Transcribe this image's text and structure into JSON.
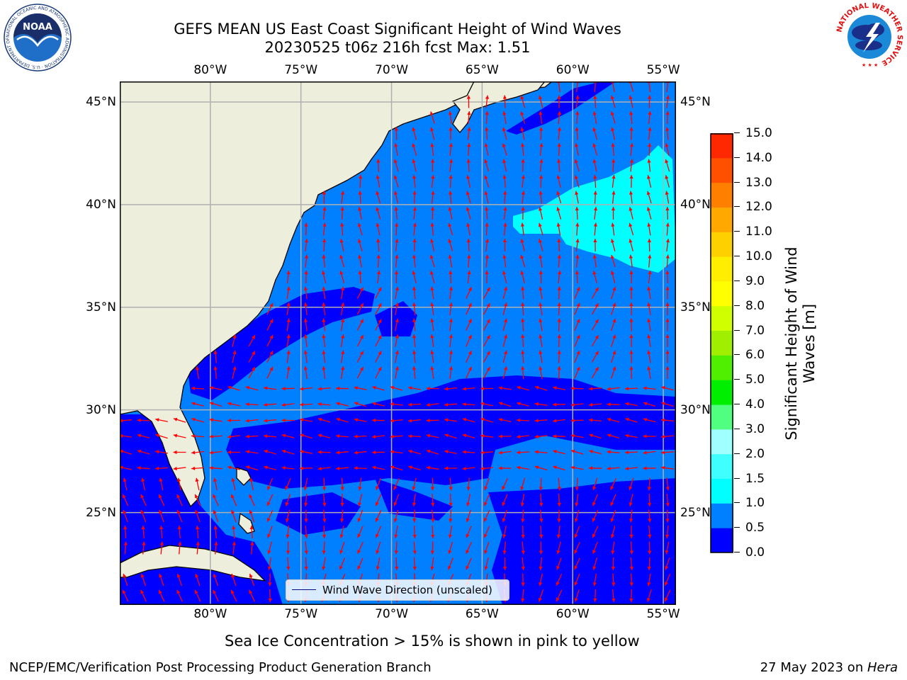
{
  "title": {
    "line1": "GEFS MEAN US East Coast Significant Height of Wind Waves",
    "line2": "20230525 t06z 216h fcst   Max: 1.51"
  },
  "logos": {
    "noaa_text": "NOAA",
    "noaa_ring": "NATIONAL OCEANIC AND ATMOSPHERIC ADMINISTRATION · U.S. DEPARTMENT OF COMMERCE ·",
    "nws_ring": "NATIONAL WEATHER SERVICE"
  },
  "map": {
    "lon_ticks": [
      "80°W",
      "75°W",
      "70°W",
      "65°W",
      "60°W",
      "55°W"
    ],
    "lat_ticks": [
      "45°N",
      "40°N",
      "35°N",
      "30°N",
      "25°N"
    ],
    "lon_values": [
      -80,
      -75,
      -70,
      -65,
      -60,
      -55
    ],
    "lat_values": [
      45,
      40,
      35,
      30,
      25
    ],
    "extent": {
      "lon": [
        -85,
        -54.3
      ],
      "lat": [
        20.5,
        46
      ]
    },
    "gridlines": true,
    "colors": {
      "land": "#eeeedc",
      "arrow": "#ff0000",
      "grid": "#b0b0b0",
      "coast": "#000000",
      "class_0_0p5": "#0000ff",
      "class_0p5_1": "#0080ff",
      "class_1_1p5": "#00ffff"
    },
    "legend_label": "Wind Wave Direction (unscaled)"
  },
  "colorbar": {
    "title_line1": "Significant Height of Wind",
    "title_line2": "Waves [m]",
    "labels": [
      "15.0",
      "14.0",
      "13.0",
      "12.0",
      "11.0",
      "10.0",
      "9.0",
      "8.0",
      "7.0",
      "6.0",
      "5.0",
      "4.0",
      "3.0",
      "2.0",
      "1.5",
      "1.0",
      "0.5",
      "0.0"
    ],
    "levels": [
      0,
      0.5,
      1.0,
      1.5,
      2.0,
      3.0,
      4.0,
      5.0,
      6.0,
      7.0,
      8.0,
      9.0,
      10.0,
      11.0,
      12.0,
      13.0,
      14.0,
      15.0
    ],
    "colors": [
      "#0000ff",
      "#0080ff",
      "#00ffff",
      "#40ffff",
      "#a0ffff",
      "#50ff80",
      "#00ee00",
      "#50ee00",
      "#a0ee00",
      "#d0ff00",
      "#ffff00",
      "#ffee00",
      "#ffd000",
      "#ffa800",
      "#ff8000",
      "#ff5000",
      "#ff2800",
      "#ff0000"
    ]
  },
  "footer": {
    "note": "Sea Ice Concentration > 15% is shown in pink to yellow",
    "left": "NCEP/EMC/Verification Post Processing Product Generation Branch",
    "date": "27 May 2023 on ",
    "machine": "Hera"
  }
}
